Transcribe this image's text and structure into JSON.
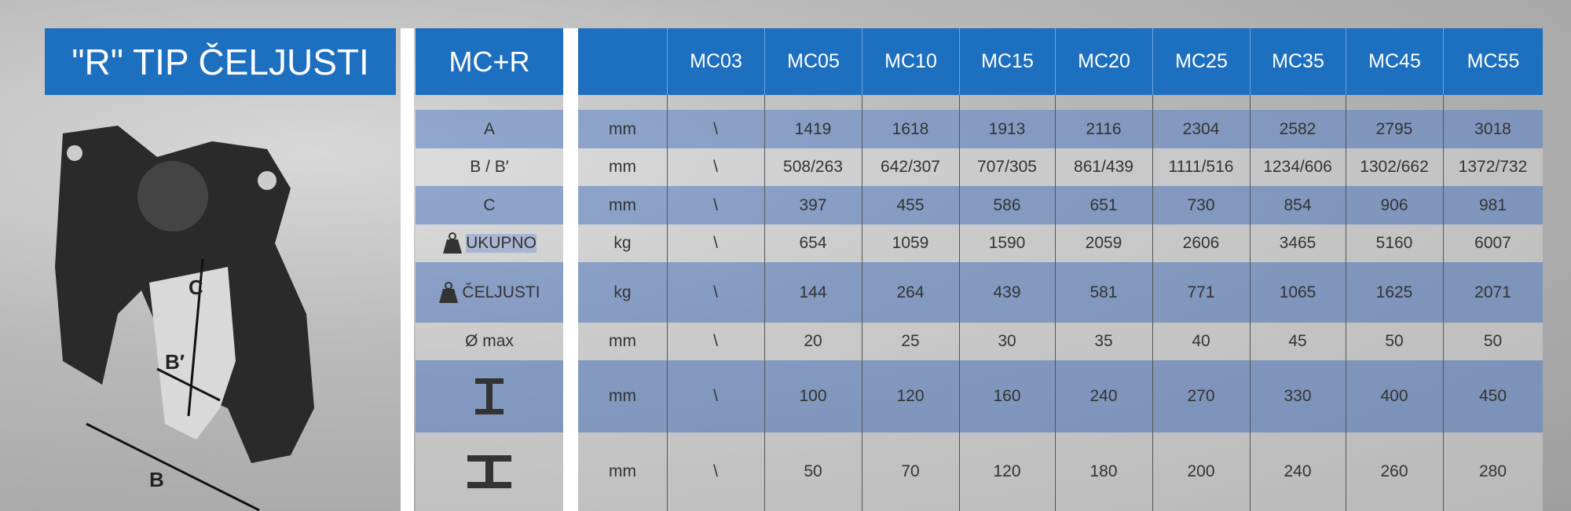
{
  "header": {
    "title": "\"R\" TIP ČELJUSTI",
    "model_label": "MC+R"
  },
  "diagram": {
    "labels": [
      "C",
      "B′",
      "B"
    ]
  },
  "table": {
    "columns": [
      "MC03",
      "MC05",
      "MC10",
      "MC15",
      "MC20",
      "MC25",
      "MC35",
      "MC45",
      "MC55"
    ],
    "rows": [
      {
        "label": "A",
        "unit": "mm",
        "values": [
          "\\",
          1419,
          1618,
          1913,
          2116,
          2304,
          2582,
          2795,
          3018
        ]
      },
      {
        "label": "B / B′",
        "unit": "mm",
        "values": [
          "\\",
          "508/263",
          "642/307",
          "707/305",
          "861/439",
          "1111/516",
          "1234/606",
          "1302/662",
          "1372/732"
        ]
      },
      {
        "label": "C",
        "unit": "mm",
        "values": [
          "\\",
          397,
          455,
          586,
          651,
          730,
          854,
          906,
          981
        ]
      },
      {
        "label": "UKUPNO",
        "unit": "kg",
        "values": [
          "\\",
          654,
          1059,
          1590,
          2059,
          2606,
          3465,
          5160,
          6007
        ]
      },
      {
        "label": "ČELJUSTI",
        "unit": "kg",
        "values": [
          "\\",
          144,
          264,
          439,
          581,
          771,
          1065,
          1625,
          2071
        ]
      },
      {
        "label": "Ø  max",
        "unit": "mm",
        "values": [
          "\\",
          20,
          25,
          30,
          35,
          40,
          45,
          50,
          50
        ]
      },
      {
        "unit": "mm",
        "values": [
          "\\",
          100,
          120,
          160,
          240,
          270,
          330,
          400,
          450
        ]
      },
      {
        "unit": "mm",
        "values": [
          "\\",
          50,
          70,
          120,
          180,
          200,
          240,
          260,
          280
        ]
      }
    ]
  }
}
